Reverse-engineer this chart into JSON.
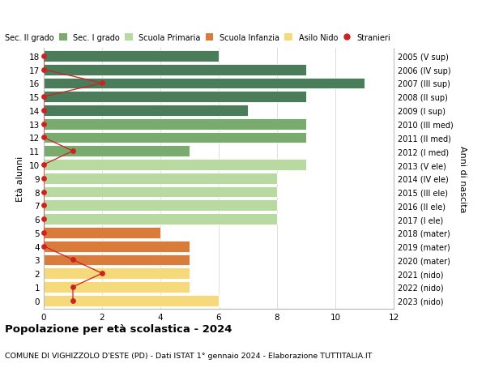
{
  "ages": [
    18,
    17,
    16,
    15,
    14,
    13,
    12,
    11,
    10,
    9,
    8,
    7,
    6,
    5,
    4,
    3,
    2,
    1,
    0
  ],
  "right_labels": [
    "2005 (V sup)",
    "2006 (IV sup)",
    "2007 (III sup)",
    "2008 (II sup)",
    "2009 (I sup)",
    "2010 (III med)",
    "2011 (II med)",
    "2012 (I med)",
    "2013 (V ele)",
    "2014 (IV ele)",
    "2015 (III ele)",
    "2016 (II ele)",
    "2017 (I ele)",
    "2018 (mater)",
    "2019 (mater)",
    "2020 (mater)",
    "2021 (nido)",
    "2022 (nido)",
    "2023 (nido)"
  ],
  "bar_values": [
    6,
    9,
    11,
    9,
    7,
    9,
    9,
    5,
    9,
    8,
    8,
    8,
    8,
    4,
    5,
    5,
    5,
    5,
    6
  ],
  "bar_colors": [
    "#4a7c59",
    "#4a7c59",
    "#4a7c59",
    "#4a7c59",
    "#4a7c59",
    "#7aab6e",
    "#7aab6e",
    "#7aab6e",
    "#b8d9a0",
    "#b8d9a0",
    "#b8d9a0",
    "#b8d9a0",
    "#b8d9a0",
    "#d97b3a",
    "#d97b3a",
    "#d97b3a",
    "#f5d97a",
    "#f5d97a",
    "#f5d97a"
  ],
  "stranieri_ages": [
    18,
    17,
    16,
    15,
    14,
    13,
    12,
    11,
    10,
    9,
    8,
    7,
    6,
    5,
    4,
    3,
    2,
    1,
    0
  ],
  "stranieri_values": [
    0,
    0,
    2,
    0,
    0,
    0,
    0,
    1,
    0,
    0,
    0,
    0,
    0,
    0,
    0,
    1,
    2,
    1,
    1
  ],
  "legend_labels": [
    "Sec. II grado",
    "Sec. I grado",
    "Scuola Primaria",
    "Scuola Infanzia",
    "Asilo Nido",
    "Stranieri"
  ],
  "legend_colors": [
    "#4a7c59",
    "#7aab6e",
    "#b8d9a0",
    "#d97b3a",
    "#f5d97a",
    "#cc2222"
  ],
  "ylabel_left": "Età alunni",
  "ylabel_right": "Anni di nascita",
  "title": "Popolazione per età scolastica - 2024",
  "subtitle": "COMUNE DI VIGHIZZOLO D'ESTE (PD) - Dati ISTAT 1° gennaio 2024 - Elaborazione TUTTITALIA.IT",
  "xlim": [
    0,
    12
  ],
  "bar_height": 0.82,
  "bg_color": "#ffffff",
  "grid_color": "#dddddd",
  "stranieri_color": "#cc2222"
}
